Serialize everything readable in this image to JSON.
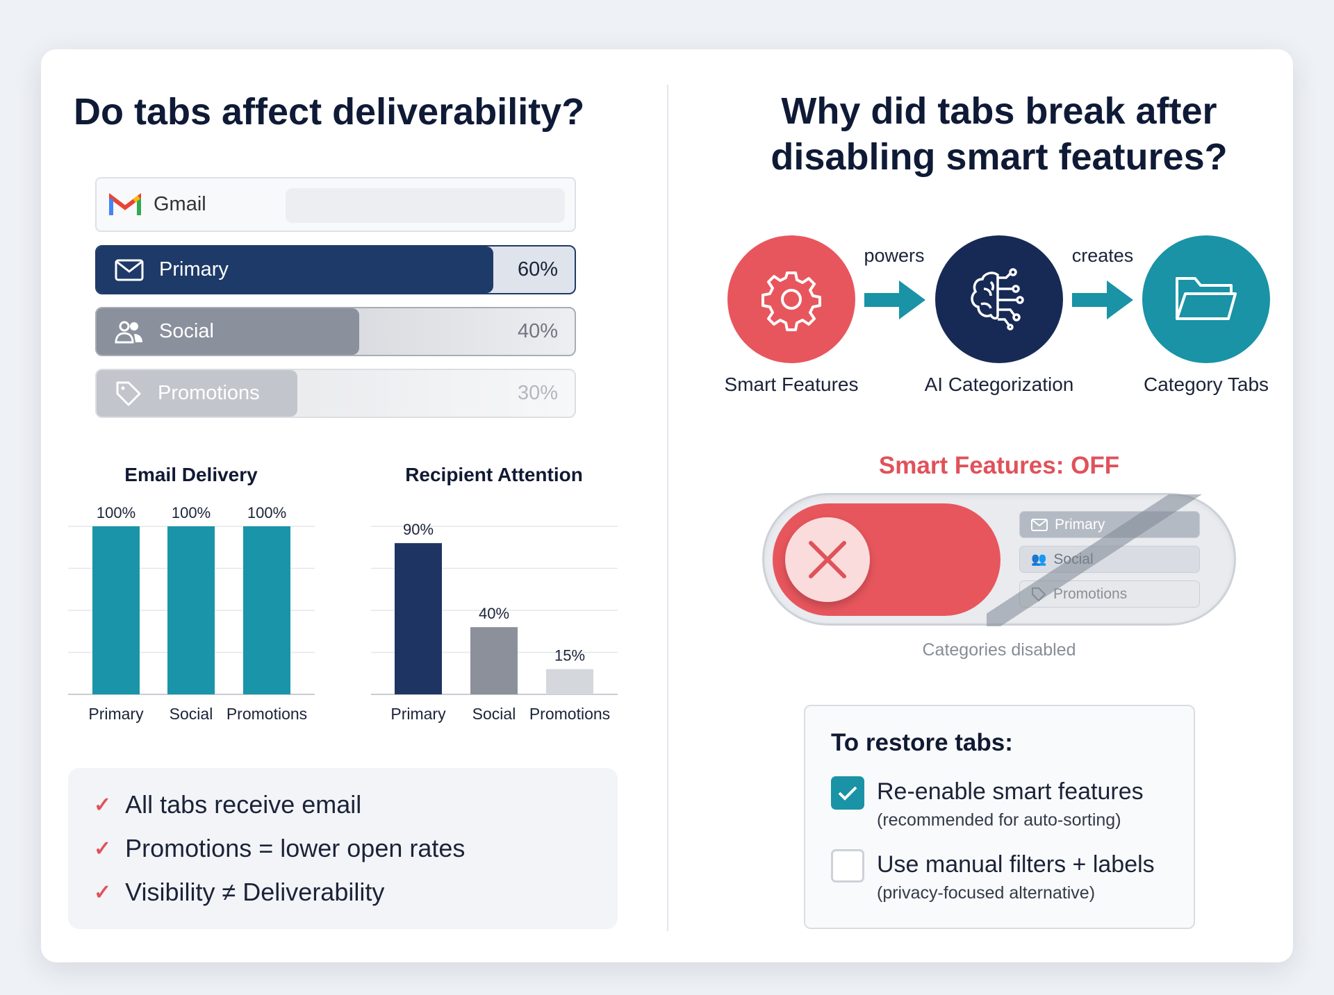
{
  "left": {
    "title": "Do tabs affect deliverability?",
    "gmail": {
      "label": "Gmail",
      "icon": "gmail-logo"
    },
    "tabs": [
      {
        "label": "Primary",
        "value": "60%",
        "fill": 0.6,
        "icon": "envelope-icon",
        "color": "#1e3a68"
      },
      {
        "label": "Social",
        "value": "40%",
        "fill": 0.4,
        "icon": "people-icon",
        "color": "#8a909c"
      },
      {
        "label": "Promotions",
        "value": "30%",
        "fill": 0.3,
        "icon": "tag-icon",
        "color": "#b8bcc4"
      }
    ],
    "checklist": [
      "All tabs receive email",
      "Promotions = lower open rates",
      "Visibility ≠ Deliverability"
    ]
  },
  "chart_data": [
    {
      "type": "bar",
      "title": "Email Delivery",
      "categories": [
        "Primary",
        "Social",
        "Promotions"
      ],
      "values": [
        100,
        100,
        100
      ],
      "data_labels": [
        "100%",
        "100%",
        "100%"
      ],
      "ylim": [
        0,
        100
      ],
      "grid": true,
      "colors": [
        "#1a94a8",
        "#1a94a8",
        "#1a94a8"
      ]
    },
    {
      "type": "bar",
      "title": "Recipient Attention",
      "categories": [
        "Primary",
        "Social",
        "Promotions"
      ],
      "values": [
        90,
        40,
        15
      ],
      "data_labels": [
        "90%",
        "40%",
        "15%"
      ],
      "ylim": [
        0,
        100
      ],
      "grid": true,
      "colors": [
        "#1e3462",
        "#8b909a",
        "#d4d7dc"
      ]
    }
  ],
  "right": {
    "title_line1": "Why did tabs break after",
    "title_line2": "disabling smart features?",
    "flow": [
      {
        "label": "Smart Features",
        "icon": "gear-icon",
        "color": "#e8565d"
      },
      {
        "label": "AI Categorization",
        "icon": "brain-circuit-icon",
        "color": "#172a55"
      },
      {
        "label": "Category Tabs",
        "icon": "folder-icon",
        "color": "#1993a5"
      }
    ],
    "arrow_labels": [
      "powers",
      "creates"
    ],
    "status": "Smart Features: OFF",
    "mini_tabs": [
      "Primary",
      "Social",
      "Promotions"
    ],
    "caption": "Categories disabled",
    "restore": {
      "title": "To restore tabs:",
      "options": [
        {
          "label": "Re-enable smart features",
          "sub": "(recommended for auto-sorting)",
          "checked": true
        },
        {
          "label": "Use manual filters + labels",
          "sub": "(privacy-focused alternative)",
          "checked": false
        }
      ]
    }
  }
}
